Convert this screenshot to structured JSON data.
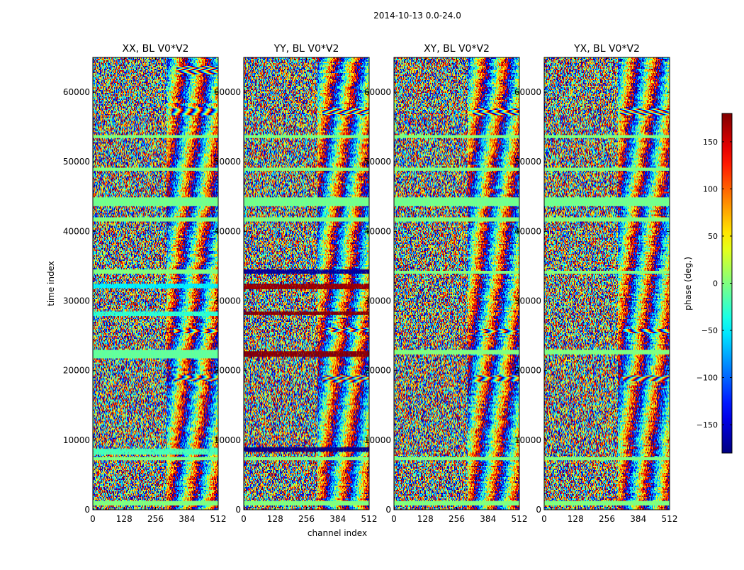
{
  "figure": {
    "suptitle": "2014-10-13 0.0-24.0",
    "xlabel": "channel index",
    "ylabel": "time index"
  },
  "chart_data": [
    {
      "type": "heatmap",
      "title": "XX, BL V0*V2",
      "xlim": [
        0,
        512
      ],
      "ylim": [
        0,
        65000
      ],
      "xticks": [
        0,
        128,
        256,
        384,
        512
      ],
      "yticks": [
        0,
        10000,
        20000,
        30000,
        40000,
        50000,
        60000
      ],
      "flat_bands": [
        {
          "y": [
            700,
            1300
          ],
          "value": 0
        },
        {
          "y": [
            7100,
            7600
          ],
          "value": 0
        },
        {
          "y": [
            7900,
            8800
          ],
          "value": -20
        },
        {
          "y": [
            21800,
            22900
          ],
          "value": -10
        },
        {
          "y": [
            27900,
            28500
          ],
          "value": -30
        },
        {
          "y": [
            31800,
            32400
          ],
          "value": -50
        },
        {
          "y": [
            33900,
            34500
          ],
          "value": 0
        },
        {
          "y": [
            41500,
            42000
          ],
          "value": 0
        },
        {
          "y": [
            43600,
            44900
          ],
          "value": -5
        },
        {
          "y": [
            48700,
            49100
          ],
          "value": 0
        },
        {
          "y": [
            53400,
            53800
          ],
          "value": 0
        }
      ],
      "fringes": [
        {
          "y": [
            18500,
            19300
          ],
          "x_start": 330,
          "amp": 180
        },
        {
          "y": [
            25300,
            26000
          ],
          "x_start": 330,
          "amp": 180
        },
        {
          "y": [
            56700,
            57600
          ],
          "x_start": 320,
          "amp": 180
        },
        {
          "y": [
            62500,
            63800
          ],
          "x_start": 340,
          "amp": 180
        }
      ]
    },
    {
      "type": "heatmap",
      "title": "YY, BL V0*V2",
      "xlim": [
        0,
        512
      ],
      "ylim": [
        0,
        65000
      ],
      "xticks": [
        0,
        128,
        256,
        384,
        512
      ],
      "yticks": [
        0,
        10000,
        20000,
        30000,
        40000,
        50000,
        60000
      ],
      "flat_bands": [
        {
          "y": [
            700,
            1300
          ],
          "value": 0
        },
        {
          "y": [
            7100,
            7600
          ],
          "value": 0
        },
        {
          "y": [
            8400,
            9000
          ],
          "value": -175
        },
        {
          "y": [
            22000,
            22800
          ],
          "value": 175
        },
        {
          "y": [
            28000,
            28500
          ],
          "value": 175
        },
        {
          "y": [
            31700,
            32400
          ],
          "value": 170
        },
        {
          "y": [
            33900,
            34500
          ],
          "value": -170
        },
        {
          "y": [
            41500,
            42000
          ],
          "value": 0
        },
        {
          "y": [
            43600,
            44900
          ],
          "value": -5
        },
        {
          "y": [
            48700,
            49100
          ],
          "value": 0
        },
        {
          "y": [
            53400,
            53800
          ],
          "value": 0
        }
      ],
      "fringes": [
        {
          "y": [
            18200,
            19300
          ],
          "x_start": 320,
          "amp": 180
        },
        {
          "y": [
            25500,
            26200
          ],
          "x_start": 320,
          "amp": 180
        },
        {
          "y": [
            56700,
            57600
          ],
          "x_start": 320,
          "amp": 180
        }
      ]
    },
    {
      "type": "heatmap",
      "title": "XY, BL V0*V2",
      "xlim": [
        0,
        512
      ],
      "ylim": [
        0,
        65000
      ],
      "xticks": [
        0,
        128,
        256,
        384,
        512
      ],
      "yticks": [
        0,
        10000,
        20000,
        30000,
        40000,
        50000,
        60000
      ],
      "flat_bands": [
        {
          "y": [
            700,
            1300
          ],
          "value": 0
        },
        {
          "y": [
            7100,
            7600
          ],
          "value": 0
        },
        {
          "y": [
            22300,
            22900
          ],
          "value": 0
        },
        {
          "y": [
            33900,
            34300
          ],
          "value": 0
        },
        {
          "y": [
            41500,
            42000
          ],
          "value": 0
        },
        {
          "y": [
            43600,
            44900
          ],
          "value": -5
        },
        {
          "y": [
            48700,
            49100
          ],
          "value": 0
        },
        {
          "y": [
            53400,
            53800
          ],
          "value": 0
        }
      ],
      "fringes": [
        {
          "y": [
            18500,
            19300
          ],
          "x_start": 320,
          "amp": 180
        },
        {
          "y": [
            25300,
            26000
          ],
          "x_start": 330,
          "amp": 180
        },
        {
          "y": [
            56700,
            57600
          ],
          "x_start": 320,
          "amp": 180
        }
      ]
    },
    {
      "type": "heatmap",
      "title": "YX, BL V0*V2",
      "xlim": [
        0,
        512
      ],
      "ylim": [
        0,
        65000
      ],
      "xticks": [
        0,
        128,
        256,
        384,
        512
      ],
      "yticks": [
        0,
        10000,
        20000,
        30000,
        40000,
        50000,
        60000
      ],
      "flat_bands": [
        {
          "y": [
            700,
            1300
          ],
          "value": 0
        },
        {
          "y": [
            7100,
            7600
          ],
          "value": 0
        },
        {
          "y": [
            22300,
            22900
          ],
          "value": 0
        },
        {
          "y": [
            33900,
            34300
          ],
          "value": 0
        },
        {
          "y": [
            41500,
            42000
          ],
          "value": 0
        },
        {
          "y": [
            43600,
            44900
          ],
          "value": -5
        },
        {
          "y": [
            48700,
            49100
          ],
          "value": 0
        },
        {
          "y": [
            53400,
            53800
          ],
          "value": 0
        }
      ],
      "fringes": [
        {
          "y": [
            18500,
            19300
          ],
          "x_start": 320,
          "amp": 180
        },
        {
          "y": [
            25300,
            26000
          ],
          "x_start": 320,
          "amp": 180
        },
        {
          "y": [
            56700,
            57600
          ],
          "x_start": 310,
          "amp": 180
        }
      ]
    }
  ],
  "colorbar": {
    "label": "phase (deg.)",
    "range": [
      -180,
      180
    ],
    "ticks": [
      -150,
      -100,
      -50,
      0,
      50,
      100,
      150
    ],
    "tick_labels": [
      "−150",
      "−100",
      "−50",
      "0",
      "50",
      "100",
      "150"
    ],
    "colormap": "jet"
  }
}
